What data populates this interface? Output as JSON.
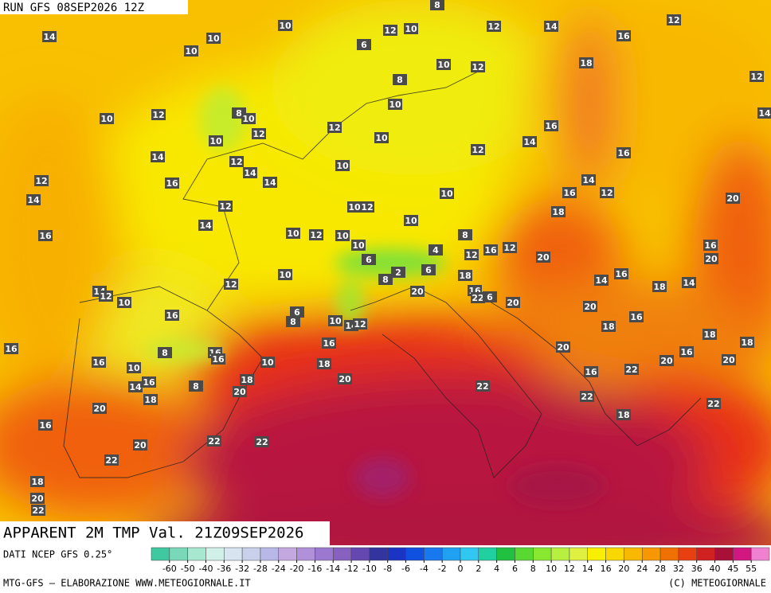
{
  "header": {
    "run": "RUN GFS 08SEP2026 12Z",
    "field": "APPARENT 2M TMP Val. 21Z09SEP2026"
  },
  "footer": {
    "source": "DATI NCEP GFS 0.25°",
    "credit": "MTG-GFS — ELABORAZIONE WWW.METEOGIORNALE.IT",
    "copyright": "(C) METEOGIORNALE"
  },
  "colorbar": {
    "labels": [
      -60,
      -50,
      -40,
      -36,
      -32,
      -28,
      -24,
      -20,
      -16,
      -14,
      -12,
      -10,
      -8,
      -6,
      -4,
      -2,
      0,
      2,
      4,
      6,
      8,
      10,
      12,
      14,
      16,
      20,
      24,
      28,
      32,
      36,
      40,
      45,
      55
    ],
    "colors": [
      "#40c8a0",
      "#78d8b8",
      "#a8e8d0",
      "#d0f0e8",
      "#d8e4f0",
      "#c8d0ec",
      "#b8b8e8",
      "#c4a8e0",
      "#b090d8",
      "#9c78d0",
      "#8860c0",
      "#6448b0",
      "#3434a0",
      "#1c34c4",
      "#1050e0",
      "#1878f0",
      "#20a0f0",
      "#30c8f0",
      "#20d0a0",
      "#20c040",
      "#58d830",
      "#88e830",
      "#b8f040",
      "#e0f040",
      "#f8f000",
      "#f8d800",
      "#f8b800",
      "#f89800",
      "#f07000",
      "#e84010",
      "#d02020",
      "#a81038",
      "#d01880",
      "#f080d0"
    ]
  },
  "map_labels": [
    14,
    10,
    10,
    6,
    12,
    10,
    8,
    12,
    14,
    12,
    16,
    10,
    10,
    12,
    18,
    12,
    8,
    10,
    10,
    12,
    8,
    10,
    12,
    12,
    10,
    10,
    16,
    14,
    12,
    16,
    14,
    14,
    12,
    14,
    14,
    10,
    12,
    16,
    14,
    10,
    16,
    14,
    12,
    20,
    12,
    10,
    12,
    14,
    10,
    18,
    16,
    10,
    12,
    10,
    10,
    8,
    16,
    4,
    12,
    16,
    12,
    20,
    20,
    6,
    2,
    6,
    8,
    10,
    12,
    18,
    14,
    16,
    18,
    14,
    14,
    12,
    10,
    16,
    22,
    6,
    20,
    20,
    20,
    6,
    8,
    16,
    10,
    14,
    12,
    16,
    18,
    18,
    18,
    16,
    16,
    16,
    16,
    10,
    8,
    20,
    16,
    20,
    20,
    16,
    18,
    10,
    18,
    20,
    16,
    22,
    16,
    14,
    8,
    20,
    18,
    22,
    22,
    22,
    20,
    18,
    16,
    22,
    22,
    20,
    22,
    18,
    20,
    22
  ]
}
